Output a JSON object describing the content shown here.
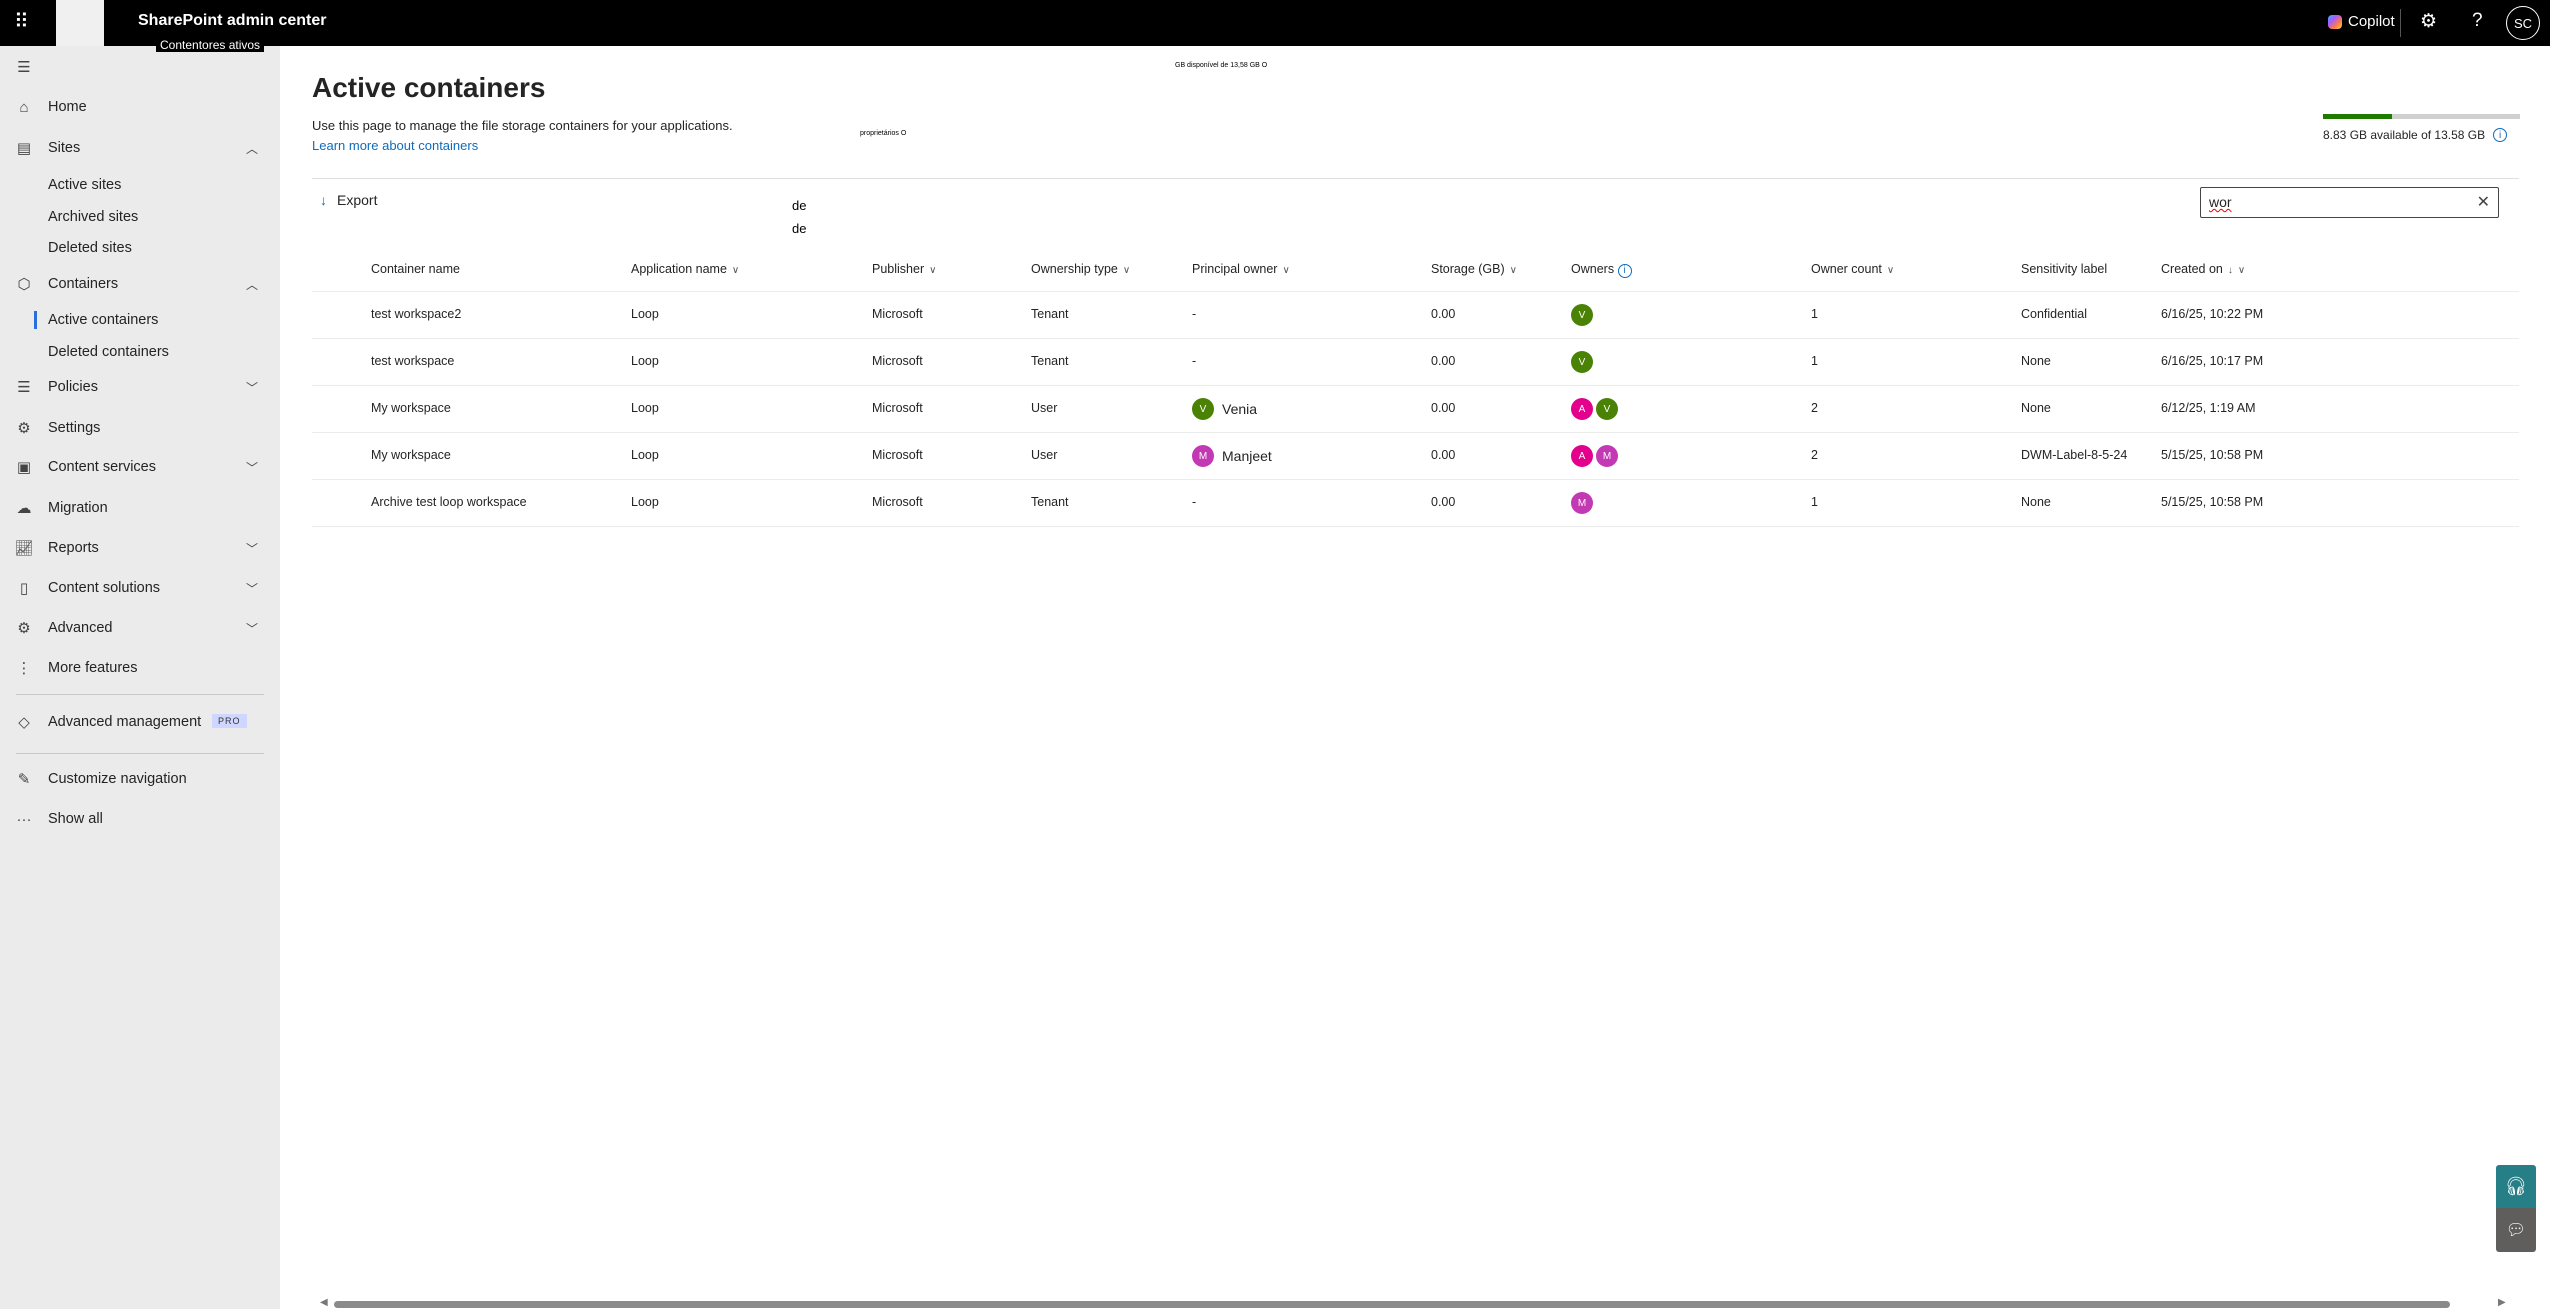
{
  "topbar": {
    "app_title": "SharePoint admin center",
    "overlay_tag": "Contentores ativos",
    "copilot_label": "Copilot",
    "user_initials": "SC",
    "icons": [
      "waffle-icon",
      "settings-icon",
      "help-icon"
    ]
  },
  "sidebar": {
    "items": [
      {
        "label": "Home",
        "icon": "home-icon"
      },
      {
        "label": "Sites",
        "icon": "sites-icon",
        "chevron": "up"
      },
      {
        "label": "Active sites",
        "sub": true
      },
      {
        "label": "Archived sites",
        "sub": true
      },
      {
        "label": "Deleted sites",
        "sub": true
      },
      {
        "label": "Containers",
        "icon": "cube-icon",
        "chevron": "up"
      },
      {
        "label": "Active containers",
        "sub": true,
        "selected": true
      },
      {
        "label": "Deleted containers",
        "sub": true
      },
      {
        "label": "Policies",
        "icon": "sliders-icon",
        "chevron": "down"
      },
      {
        "label": "Settings",
        "icon": "gear-icon"
      },
      {
        "label": "Content services",
        "icon": "content-services-icon",
        "chevron": "down"
      },
      {
        "label": "Migration",
        "icon": "cloud-upload-icon"
      },
      {
        "label": "Reports",
        "icon": "chart-icon",
        "chevron": "down"
      },
      {
        "label": "Content solutions",
        "icon": "document-icon",
        "chevron": "down"
      },
      {
        "label": "Advanced",
        "icon": "gears-icon",
        "chevron": "down"
      },
      {
        "label": "More features",
        "icon": "more-vertical-icon"
      }
    ],
    "advanced_management": {
      "label": "Advanced management",
      "badge": "PRO"
    },
    "customize": "Customize navigation",
    "show_all": "Show all"
  },
  "page": {
    "title": "Active containers",
    "description": "Use this page to manage the file storage containers for your applications.",
    "learn_more": "Learn more about containers",
    "stray_text": {
      "storage_pt": "GB disponível de 13,58 GB O",
      "owners_pt": "proprietários O",
      "de1": "de",
      "de2": "de"
    }
  },
  "storage": {
    "used_fraction": 0.35,
    "text": "8.83 GB available of 13.58 GB",
    "colors": {
      "fill": "#1f7a00",
      "track": "#d0d0d0"
    }
  },
  "toolbar": {
    "export": "Export",
    "search_value": "wor"
  },
  "table": {
    "columns": [
      "Container name",
      "Application name",
      "Publisher",
      "Ownership type",
      "Principal owner",
      "Storage (GB)",
      "Owners",
      "Owner count",
      "Sensitivity label",
      "Created on"
    ],
    "rows": [
      {
        "name": "test workspace2",
        "app": "Loop",
        "publisher": "Microsoft",
        "ownership": "Tenant",
        "principal": "-",
        "principal_initial": "",
        "storage": "0.00",
        "owners": [
          "V"
        ],
        "count": "1",
        "label": "Confidential",
        "created": "6/16/25, 10:22 PM"
      },
      {
        "name": "test workspace",
        "app": "Loop",
        "publisher": "Microsoft",
        "ownership": "Tenant",
        "principal": "-",
        "principal_initial": "",
        "storage": "0.00",
        "owners": [
          "V"
        ],
        "count": "1",
        "label": "None",
        "created": "6/16/25, 10:17 PM"
      },
      {
        "name": "My workspace",
        "app": "Loop",
        "publisher": "Microsoft",
        "ownership": "User",
        "principal": "Venia",
        "principal_initial": "V",
        "storage": "0.00",
        "owners": [
          "A",
          "V"
        ],
        "count": "2",
        "label": "None",
        "created": "6/12/25, 1:19 AM"
      },
      {
        "name": "My workspace",
        "app": "Loop",
        "publisher": "Microsoft",
        "ownership": "User",
        "principal": "Manjeet",
        "principal_initial": "M",
        "storage": "0.00",
        "owners": [
          "A",
          "M"
        ],
        "count": "2",
        "label": "DWM-Label-8-5-24",
        "created": "5/15/25, 10:58 PM"
      },
      {
        "name": "Archive test loop workspace",
        "app": "Loop",
        "publisher": "Microsoft",
        "ownership": "Tenant",
        "principal": "-",
        "principal_initial": "",
        "storage": "0.00",
        "owners": [
          "M"
        ],
        "count": "1",
        "label": "None",
        "created": "5/15/25, 10:58 PM"
      }
    ],
    "avatar_colors": {
      "V": "#498205",
      "A": "#e3008c",
      "M": "#c239b3"
    }
  }
}
